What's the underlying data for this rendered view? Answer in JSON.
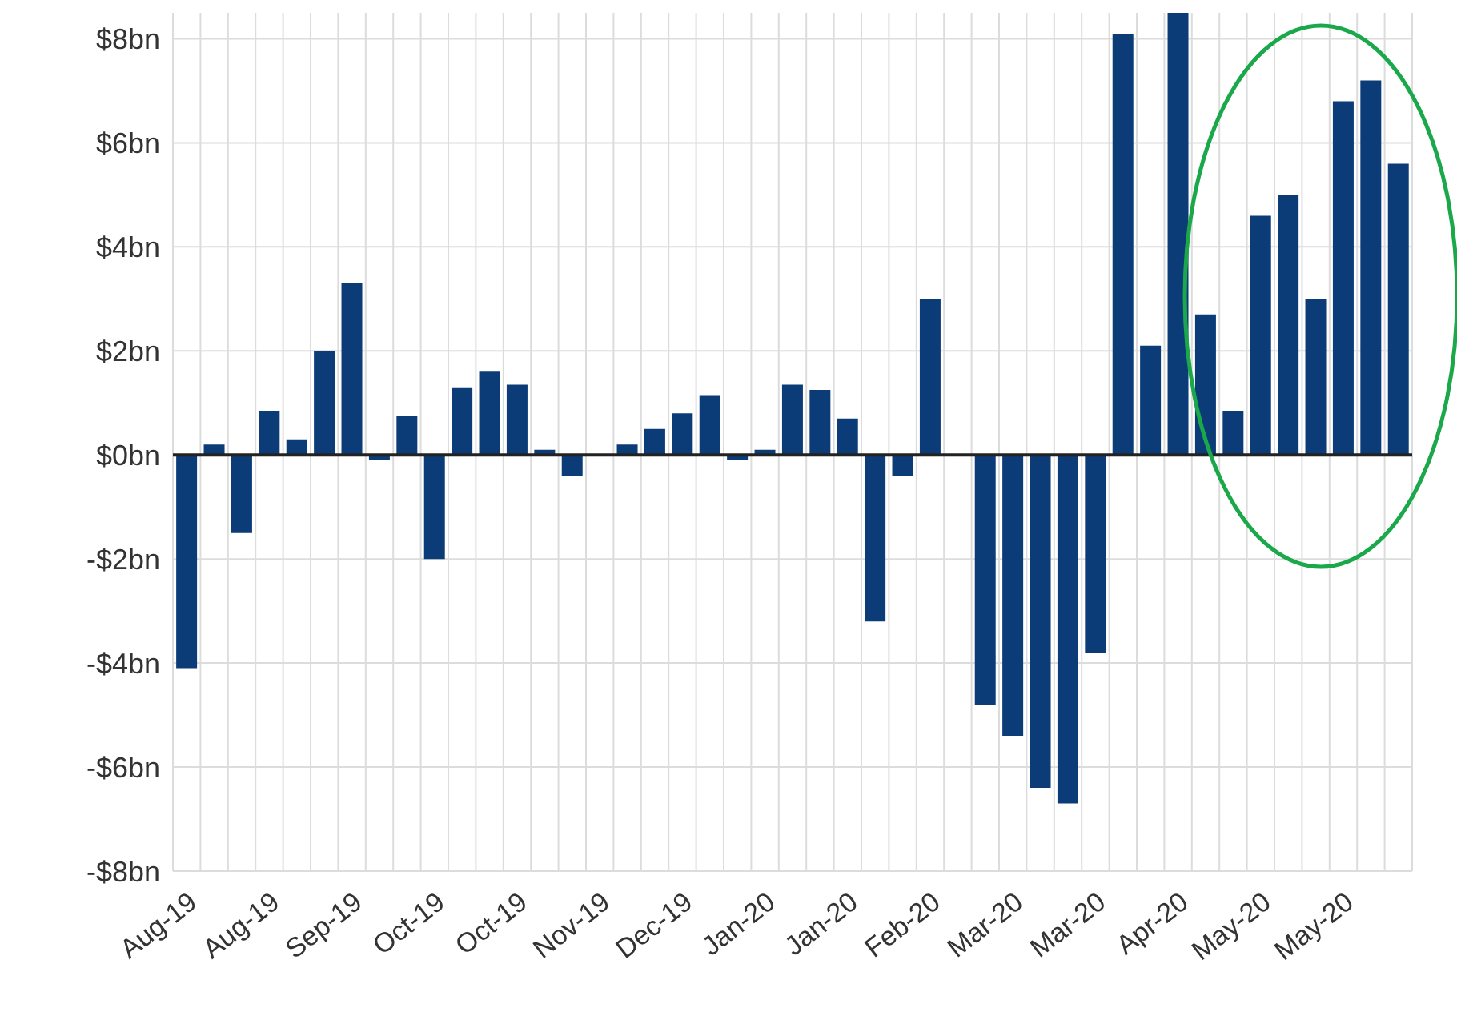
{
  "chart_data": {
    "type": "bar",
    "categories": [
      "Aug-19",
      null,
      null,
      "Aug-19",
      null,
      null,
      "Sep-19",
      null,
      null,
      "Oct-19",
      null,
      null,
      "Oct-19",
      null,
      null,
      "Nov-19",
      null,
      null,
      "Dec-19",
      null,
      null,
      "Jan-20",
      null,
      null,
      "Jan-20",
      null,
      null,
      "Feb-20",
      null,
      null,
      "Mar-20",
      null,
      null,
      "Mar-20",
      null,
      null,
      "Apr-20",
      null,
      null,
      "May-20",
      null,
      null,
      "May-20",
      null,
      null
    ],
    "values": [
      -4.1,
      0.2,
      -1.5,
      0.85,
      0.3,
      2.0,
      3.3,
      -0.1,
      0.75,
      -2.0,
      1.3,
      1.6,
      1.35,
      0.1,
      -0.4,
      null,
      0.2,
      0.5,
      0.8,
      1.15,
      -0.1,
      0.1,
      1.35,
      1.25,
      0.7,
      -3.2,
      -0.4,
      3.0,
      null,
      -4.8,
      -5.4,
      -6.4,
      -6.7,
      -3.8,
      8.1,
      2.1,
      8.5,
      2.7,
      0.85,
      4.6,
      5.0,
      3.0,
      6.8,
      7.2,
      5.6
    ],
    "color": "#0b3c78",
    "ylim": [
      -8,
      8.5
    ],
    "yticks": [
      {
        "value": -8,
        "label": "-$8bn"
      },
      {
        "value": -6,
        "label": "-$6bn"
      },
      {
        "value": -4,
        "label": "-$4bn"
      },
      {
        "value": -2,
        "label": "-$2bn"
      },
      {
        "value": 0,
        "label": "$0bn"
      },
      {
        "value": 2,
        "label": "$2bn"
      },
      {
        "value": 4,
        "label": "$4bn"
      },
      {
        "value": 6,
        "label": "$6bn"
      },
      {
        "value": 8,
        "label": "$8bn"
      }
    ],
    "grid": true
  }
}
